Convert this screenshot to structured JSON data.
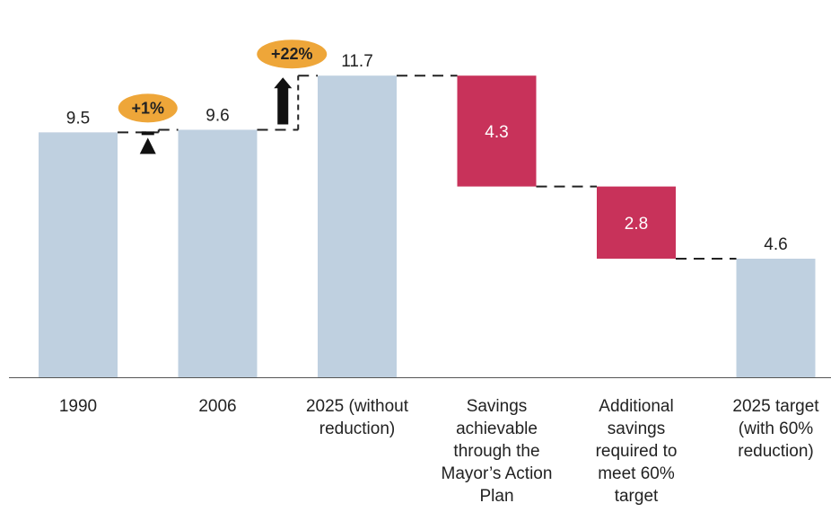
{
  "chart_data": {
    "type": "waterfall",
    "categories": [
      [
        "1990"
      ],
      [
        "2006"
      ],
      [
        "2025 (without",
        "reduction)"
      ],
      [
        "Savings",
        "achievable",
        "through the",
        "Mayor’s Action",
        "Plan"
      ],
      [
        "Additional",
        "savings",
        "required to",
        "meet 60%",
        "target"
      ],
      [
        "2025 target",
        "(with 60%",
        "reduction)"
      ]
    ],
    "bars": [
      {
        "kind": "total",
        "value": 9.5,
        "label": "9.5"
      },
      {
        "kind": "total",
        "value": 9.6,
        "label": "9.6"
      },
      {
        "kind": "total",
        "value": 11.7,
        "label": "11.7"
      },
      {
        "kind": "decrease",
        "value": 4.3,
        "label": "4.3"
      },
      {
        "kind": "decrease",
        "value": 2.8,
        "label": "2.8"
      },
      {
        "kind": "total",
        "value": 4.6,
        "label": "4.6"
      }
    ],
    "changes": [
      {
        "between": [
          0,
          1
        ],
        "label": "+1%"
      },
      {
        "between": [
          1,
          2
        ],
        "label": "+22%"
      }
    ],
    "ylim": [
      0,
      12.2
    ],
    "grid": false,
    "colors": {
      "total": "#bfd0e0",
      "decrease": "#c8325a",
      "badge": "#eea639",
      "arrow": "#111111",
      "connector": "#222222",
      "axis": "#555555",
      "label_on_dark": "#ffffff",
      "label": "#222222"
    }
  }
}
